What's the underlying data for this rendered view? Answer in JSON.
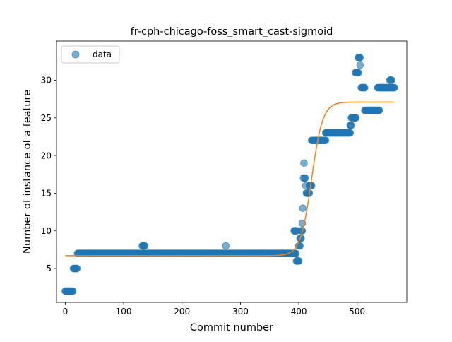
{
  "chart_data": {
    "type": "scatter",
    "title": "fr-cph-chicago-foss_smart_cast-sigmoid",
    "xlabel": "Commit number",
    "ylabel": "Number of instance of a feature",
    "xlim": [
      -15,
      585
    ],
    "ylim": [
      0.5,
      35.2
    ],
    "xticks": [
      0,
      100,
      200,
      300,
      400,
      500
    ],
    "yticks": [
      5,
      10,
      15,
      20,
      25,
      30
    ],
    "grid": false,
    "legend": {
      "placement": "top-left",
      "entries": [
        "data"
      ]
    },
    "colors": {
      "data": "#1f77b4",
      "fit": "#ff7f0e"
    },
    "data_runs": [
      {
        "x_start": 0,
        "x_end": 13,
        "y": 2
      },
      {
        "x_start": 14,
        "x_end": 20,
        "y": 5
      },
      {
        "x_start": 21,
        "x_end": 395,
        "y": 7
      },
      {
        "x_start": 132,
        "x_end": 136,
        "y": 8
      },
      {
        "x_start": 392,
        "x_end": 396,
        "y": 10
      },
      {
        "x_start": 396,
        "x_end": 400,
        "y": 6
      },
      {
        "x_start": 400,
        "x_end": 402,
        "y": 8
      },
      {
        "x_start": 402,
        "x_end": 404,
        "y": 9
      },
      {
        "x_start": 404,
        "x_end": 406,
        "y": 10
      },
      {
        "x_start": 414,
        "x_end": 418,
        "y": 15
      },
      {
        "x_start": 418,
        "x_end": 422,
        "y": 16
      },
      {
        "x_start": 422,
        "x_end": 446,
        "y": 22
      },
      {
        "x_start": 446,
        "x_end": 488,
        "y": 23
      },
      {
        "x_start": 488,
        "x_end": 490,
        "y": 24
      },
      {
        "x_start": 490,
        "x_end": 498,
        "y": 25
      },
      {
        "x_start": 497,
        "x_end": 502,
        "y": 31
      },
      {
        "x_start": 502,
        "x_end": 505,
        "y": 33
      },
      {
        "x_start": 507,
        "x_end": 513,
        "y": 29
      },
      {
        "x_start": 513,
        "x_end": 538,
        "y": 26
      },
      {
        "x_start": 535,
        "x_end": 564,
        "y": 29
      },
      {
        "x_start": 556,
        "x_end": 559,
        "y": 30
      }
    ],
    "data_points": [
      {
        "x": 275,
        "y": 8
      },
      {
        "x": 406,
        "y": 11
      },
      {
        "x": 407,
        "y": 13
      },
      {
        "x": 408,
        "y": 17
      },
      {
        "x": 409,
        "y": 19
      },
      {
        "x": 410,
        "y": 17
      },
      {
        "x": 411,
        "y": 17
      },
      {
        "x": 412,
        "y": 16
      },
      {
        "x": 413,
        "y": 15
      },
      {
        "x": 505,
        "y": 32
      }
    ],
    "fit_curve": {
      "model": "sigmoid",
      "params": {
        "L": 20.4,
        "k": 0.105,
        "x0": 422,
        "b": 6.7
      },
      "x_range": [
        0,
        563
      ]
    }
  }
}
